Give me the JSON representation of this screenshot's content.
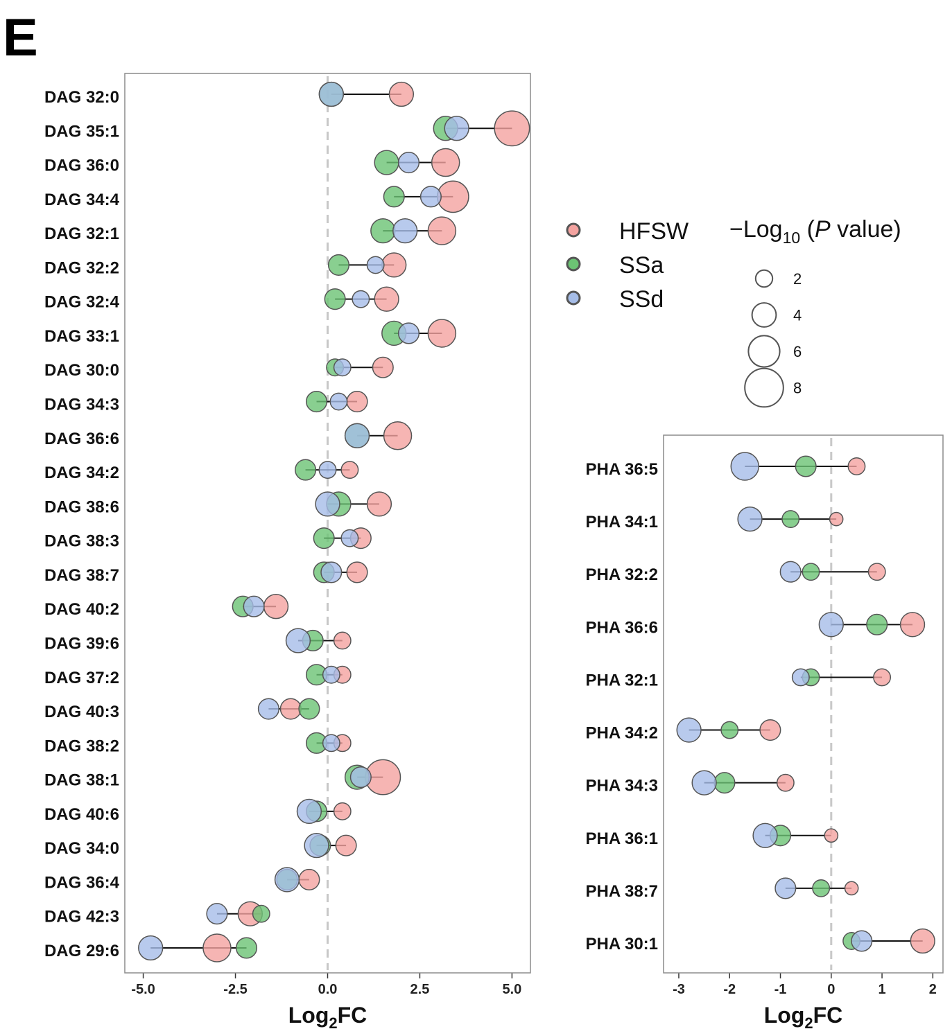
{
  "panel_letter": "E",
  "colors": {
    "HFSW": "#f4a3a0",
    "SSa": "#6cc374",
    "SSd": "#a6bde8",
    "stroke": "#555555",
    "zero_line": "#c8c8c8"
  },
  "legend": {
    "groups": [
      "HFSW",
      "SSa",
      "SSd"
    ],
    "size_title_prefix": "−Log",
    "size_title_sub": "10",
    "size_title_open": " (",
    "size_title_italic": "P",
    "size_title_suffix": " value)",
    "size_values": [
      "2",
      "4",
      "6",
      "8"
    ]
  },
  "chart_data": [
    {
      "type": "scatter",
      "name": "DAG",
      "xlabel": "Log2FC",
      "xlabel_main": "Log",
      "xlabel_sub": "2",
      "xlabel_end": "FC",
      "xlim": [
        -5.5,
        5.5
      ],
      "xticks": [
        "-5.0",
        "-2.5",
        "0.0",
        "2.5",
        "5.0"
      ],
      "xtick_values": [
        -5.0,
        -2.5,
        0.0,
        2.5,
        5.0
      ],
      "categories": [
        "DAG 32:0",
        "DAG 35:1",
        "DAG 36:0",
        "DAG 34:4",
        "DAG 32:1",
        "DAG 32:2",
        "DAG 32:4",
        "DAG 33:1",
        "DAG 30:0",
        "DAG 34:3",
        "DAG 36:6",
        "DAG 34:2",
        "DAG 38:6",
        "DAG 38:3",
        "DAG 38:7",
        "DAG 40:2",
        "DAG 39:6",
        "DAG 37:2",
        "DAG 40:3",
        "DAG 38:2",
        "DAG 38:1",
        "DAG 40:6",
        "DAG 34:0",
        "DAG 36:4",
        "DAG 42:3",
        "DAG 29:6"
      ],
      "series": [
        {
          "name": "HFSW",
          "values": [
            2.0,
            5.0,
            3.2,
            3.4,
            3.1,
            1.8,
            1.6,
            3.1,
            1.5,
            0.8,
            1.9,
            0.6,
            1.4,
            0.9,
            0.8,
            -1.4,
            0.4,
            0.4,
            -1.0,
            0.4,
            1.5,
            0.4,
            0.5,
            -0.5,
            -2.1,
            -3.0
          ],
          "neglog10p": [
            4,
            7,
            5,
            6,
            5,
            4,
            4,
            5,
            3,
            3,
            5,
            2,
            4,
            3,
            3,
            4,
            2,
            2,
            3,
            2,
            7,
            2,
            3,
            3,
            4,
            5
          ]
        },
        {
          "name": "SSa",
          "values": [
            0.1,
            3.2,
            1.6,
            1.8,
            1.5,
            0.3,
            0.2,
            1.8,
            0.2,
            -0.3,
            0.8,
            -0.6,
            0.3,
            -0.1,
            -0.1,
            -2.3,
            -0.4,
            -0.3,
            -0.5,
            -0.3,
            0.8,
            -0.3,
            -0.2,
            -1.1,
            -1.8,
            -2.2
          ],
          "neglog10p": [
            4,
            4,
            4,
            3,
            4,
            3,
            3,
            4,
            2,
            3,
            4,
            3,
            4,
            3,
            3,
            3,
            3,
            3,
            3,
            3,
            4,
            3,
            3,
            3,
            2,
            3
          ]
        },
        {
          "name": "SSd",
          "values": [
            0.1,
            3.5,
            2.2,
            2.8,
            2.1,
            1.3,
            0.9,
            2.2,
            0.4,
            0.3,
            0.8,
            0.0,
            0.0,
            0.6,
            0.1,
            -2.0,
            -0.8,
            0.1,
            -1.6,
            0.1,
            0.9,
            -0.5,
            -0.3,
            -1.1,
            -3.0,
            -4.8
          ],
          "neglog10p": [
            4,
            4,
            3,
            3,
            4,
            2,
            2,
            3,
            2,
            2,
            4,
            2,
            4,
            2,
            3,
            3,
            4,
            2,
            3,
            2,
            3,
            4,
            4,
            4,
            3,
            4
          ]
        }
      ]
    },
    {
      "type": "scatter",
      "name": "PHA",
      "xlabel": "Log2FC",
      "xlabel_main": "Log",
      "xlabel_sub": "2",
      "xlabel_end": "FC",
      "xlim": [
        -3.3,
        2.2
      ],
      "xticks": [
        "-3",
        "-2",
        "-1",
        "0",
        "1",
        "2"
      ],
      "xtick_values": [
        -3,
        -2,
        -1,
        0,
        1,
        2
      ],
      "categories": [
        "PHA 36:5",
        "PHA 34:1",
        "PHA 32:2",
        "PHA 36:6",
        "PHA 32:1",
        "PHA 34:2",
        "PHA 34:3",
        "PHA 36:1",
        "PHA 38:7",
        "PHA 30:1"
      ],
      "series": [
        {
          "name": "HFSW",
          "values": [
            0.5,
            0.1,
            0.9,
            1.6,
            1.0,
            -1.2,
            -0.9,
            0.0,
            0.4,
            1.8
          ],
          "neglog10p": [
            2,
            1,
            2,
            4,
            2,
            3,
            2,
            1,
            1,
            4
          ]
        },
        {
          "name": "SSa",
          "values": [
            -0.5,
            -0.8,
            -0.4,
            0.9,
            -0.4,
            -2.0,
            -2.1,
            -1.0,
            -0.2,
            0.4
          ],
          "neglog10p": [
            3,
            2,
            2,
            3,
            2,
            2,
            3,
            3,
            2,
            2
          ]
        },
        {
          "name": "SSd",
          "values": [
            -1.7,
            -1.6,
            -0.8,
            0.0,
            -0.6,
            -2.8,
            -2.5,
            -1.3,
            -0.9,
            0.6
          ],
          "neglog10p": [
            5,
            4,
            3,
            4,
            2,
            4,
            4,
            4,
            3,
            3
          ]
        }
      ]
    }
  ]
}
